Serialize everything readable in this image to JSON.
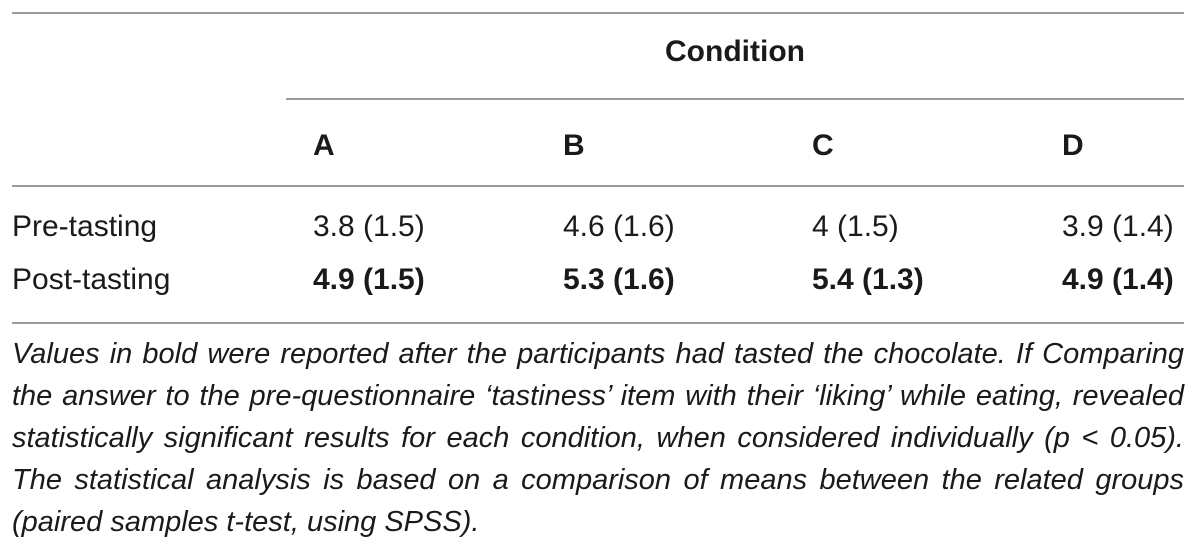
{
  "table": {
    "group_header": "Condition",
    "columns": [
      "A",
      "B",
      "C",
      "D"
    ],
    "rows": [
      {
        "label": "Pre-tasting",
        "bold": false,
        "values": [
          "3.8 (1.5)",
          "4.6 (1.6)",
          "4 (1.5)",
          "3.9 (1.4)"
        ]
      },
      {
        "label": "Post-tasting",
        "bold": true,
        "values": [
          "4.9 (1.5)",
          "5.3 (1.6)",
          "5.4 (1.3)",
          "4.9 (1.4)"
        ]
      }
    ],
    "note": "Values in bold were reported after the participants had tasted the chocolate. If Comparing the answer to the pre-questionnaire ‘tastiness’ item with their ‘liking’ while eating, revealed statistically significant results for each condition, when considered individually (p < 0.05). The statistical analysis is based on a comparison of means between the related groups (paired samples t-test, using SPSS)."
  },
  "colors": {
    "text": "#1a1a1a",
    "rule": "#9a9a9a",
    "background": "#ffffff"
  }
}
